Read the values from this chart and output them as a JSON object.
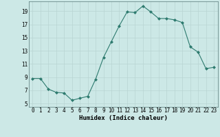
{
  "x": [
    0,
    1,
    2,
    3,
    4,
    5,
    6,
    7,
    8,
    9,
    10,
    11,
    12,
    13,
    14,
    15,
    16,
    17,
    18,
    19,
    20,
    21,
    22,
    23
  ],
  "y": [
    8.8,
    8.8,
    7.2,
    6.7,
    6.6,
    5.5,
    5.8,
    6.1,
    8.7,
    12.0,
    14.4,
    16.8,
    18.9,
    18.8,
    19.8,
    18.9,
    17.9,
    17.9,
    17.7,
    17.3,
    13.6,
    12.8,
    10.3,
    10.5
  ],
  "line_color": "#2d7a6e",
  "marker": "D",
  "marker_size": 2.0,
  "bg_color": "#cce8e6",
  "grid_color": "#b8d4d2",
  "xlabel": "Humidex (Indice chaleur)",
  "ylabel_ticks": [
    5,
    7,
    9,
    11,
    13,
    15,
    17,
    19
  ],
  "xlim": [
    -0.5,
    23.5
  ],
  "ylim": [
    4.5,
    20.5
  ],
  "xticks": [
    0,
    1,
    2,
    3,
    4,
    5,
    6,
    7,
    8,
    9,
    10,
    11,
    12,
    13,
    14,
    15,
    16,
    17,
    18,
    19,
    20,
    21,
    22,
    23
  ],
  "xtick_labels": [
    "0",
    "1",
    "2",
    "3",
    "4",
    "5",
    "6",
    "7",
    "8",
    "9",
    "10",
    "11",
    "12",
    "13",
    "14",
    "15",
    "16",
    "17",
    "18",
    "19",
    "20",
    "21",
    "22",
    "23"
  ],
  "tick_fontsize": 5.5,
  "xlabel_fontsize": 6.5
}
